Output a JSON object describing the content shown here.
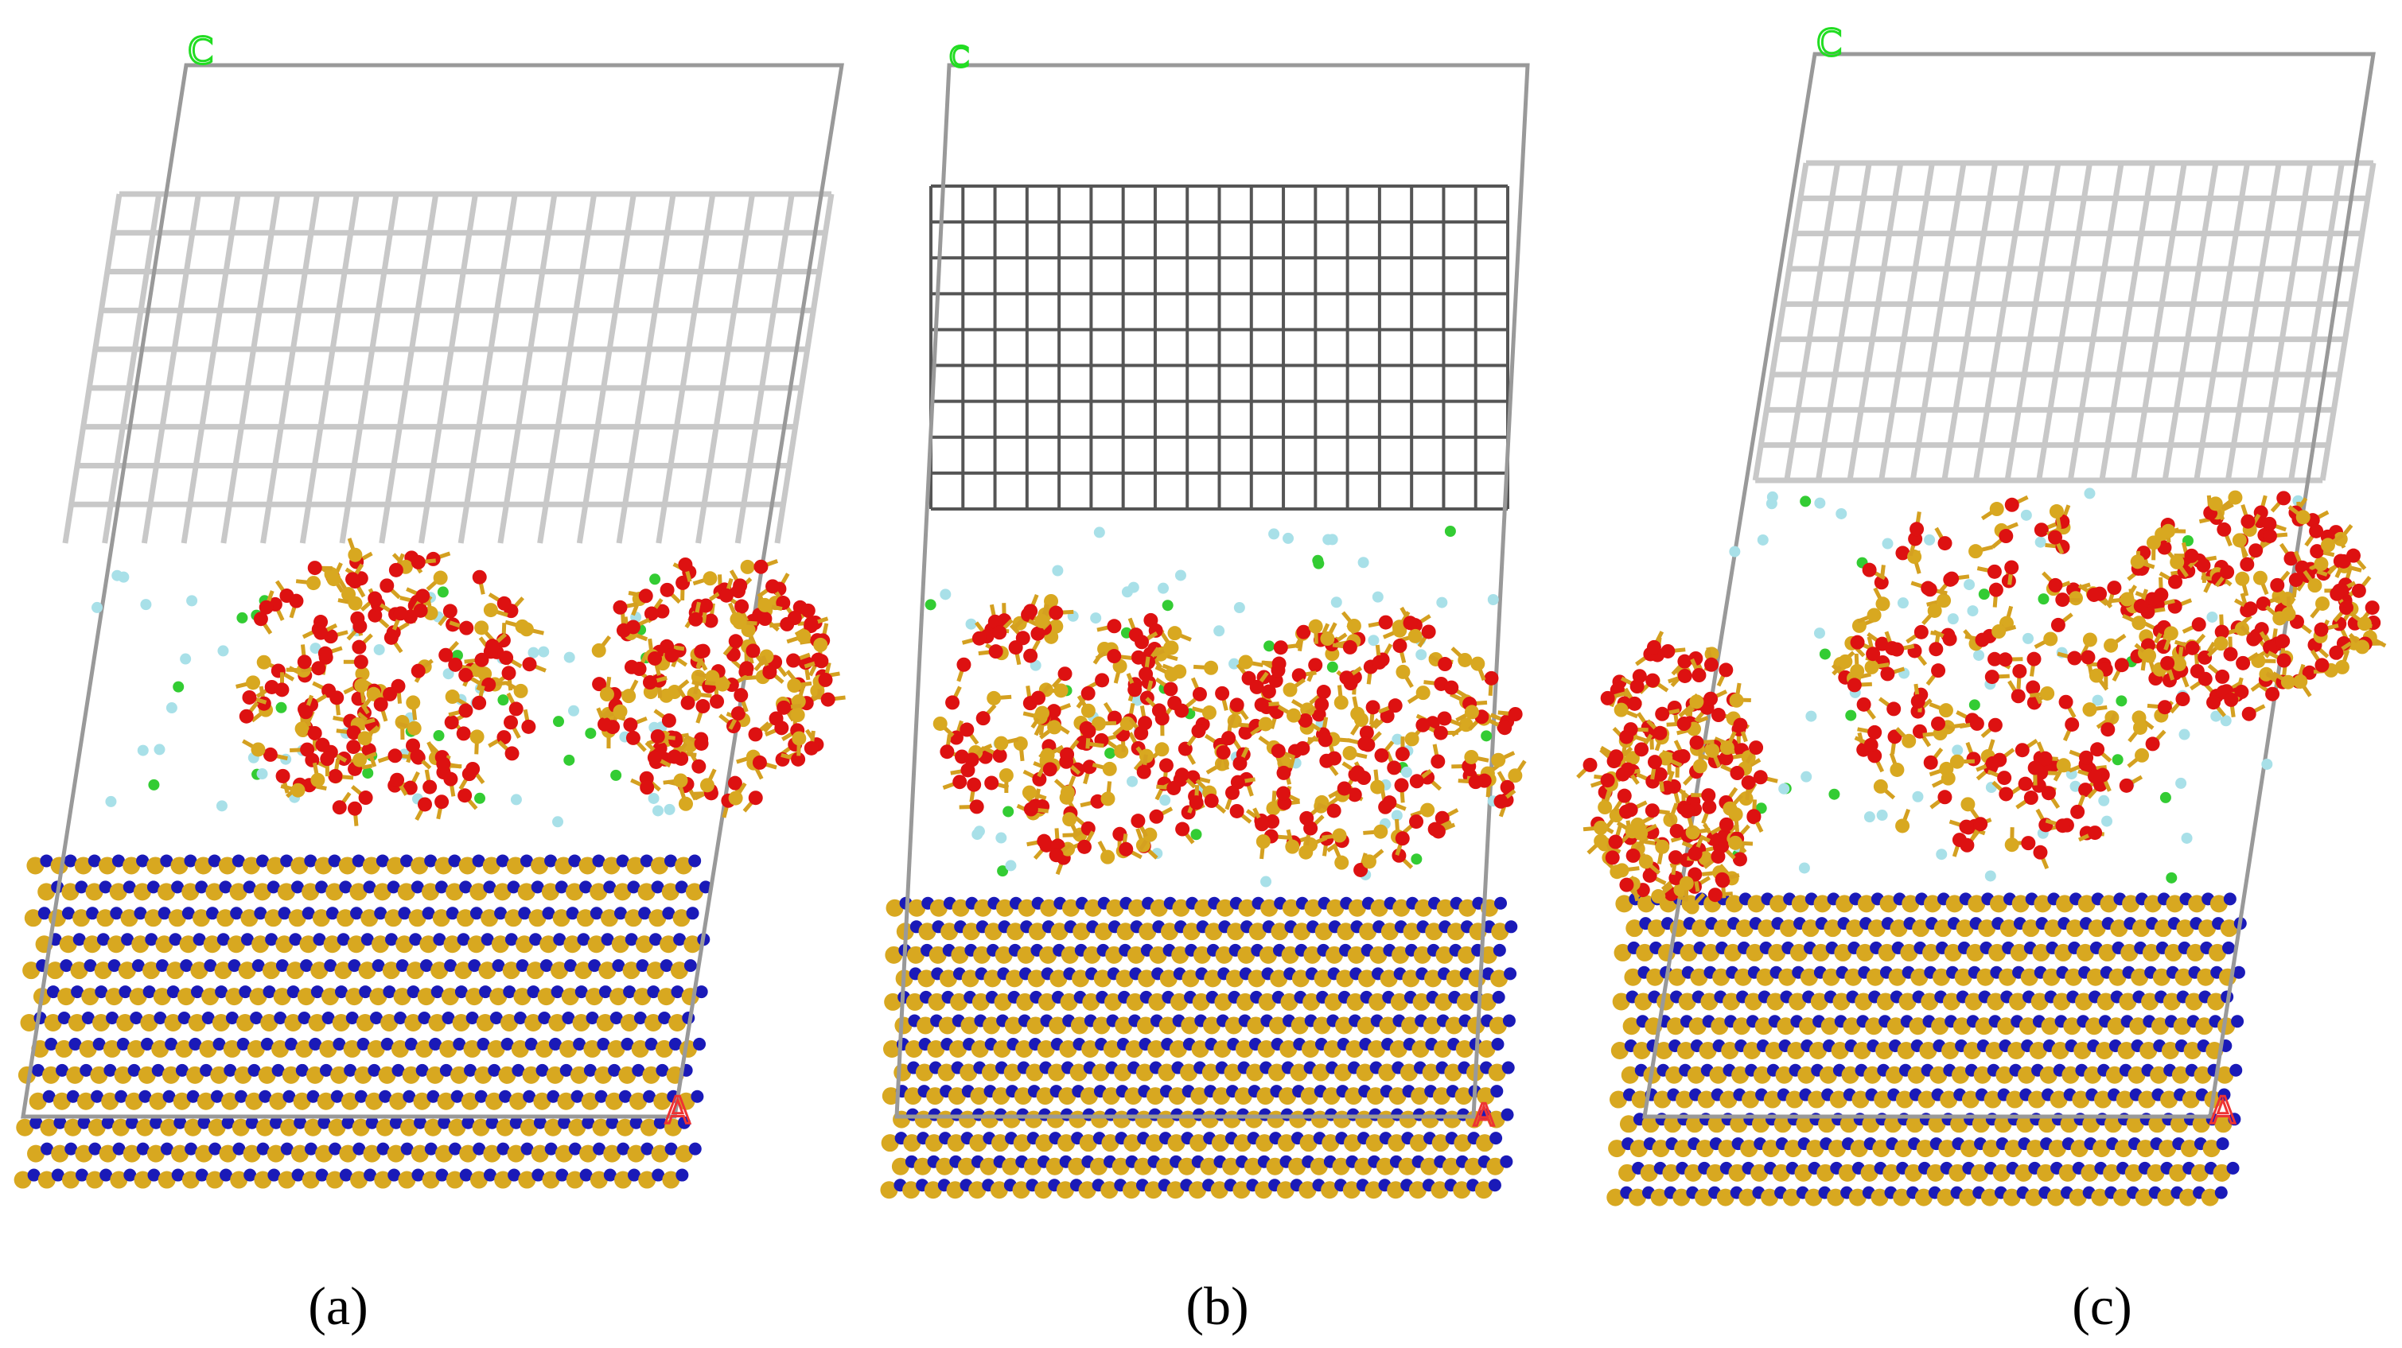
{
  "panels": [
    {
      "caption": "(a)",
      "axis_c": "C",
      "axis_a": "A"
    },
    {
      "caption": "(b)",
      "axis_c": "C",
      "axis_a": "A"
    },
    {
      "caption": "(c)",
      "axis_c": "C",
      "axis_a": "A"
    }
  ]
}
